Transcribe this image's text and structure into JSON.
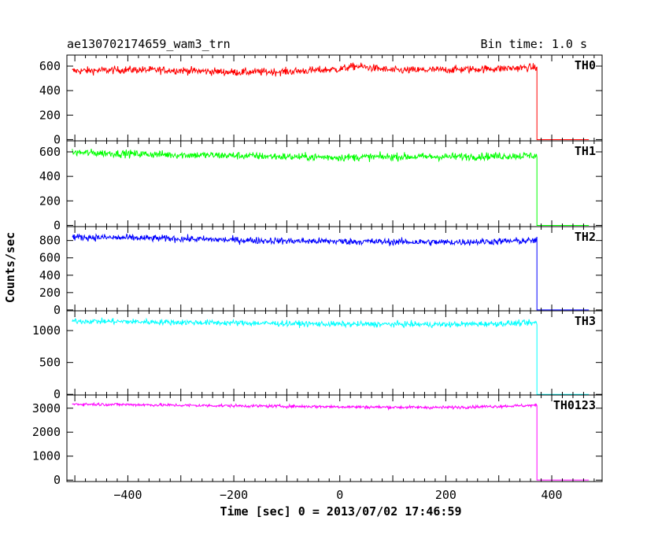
{
  "chart_data": {
    "type": "line",
    "title": "ae130702174659_wam3_trn",
    "bin_time_label": "Bin time: 1.0 s",
    "xlabel": "Time [sec] 0 = 2013/07/02 17:46:59",
    "ylabel": "Counts/sec",
    "xlim": [
      -515,
      495
    ],
    "x_ticks": [
      -400,
      -200,
      0,
      200,
      400
    ],
    "x_tick_labels": [
      "−400",
      "−200",
      "0",
      "200",
      "400"
    ],
    "signal_x_range": [
      -505,
      372
    ],
    "dropoff_x": 372,
    "end_x": 470,
    "panels": [
      {
        "label": "TH0",
        "color": "#ff0000",
        "ylim": [
          -10,
          690
        ],
        "y_ticks": [
          0,
          200,
          400,
          600
        ],
        "y_tick_labels": [
          "0",
          "200",
          "400",
          "600"
        ],
        "trend_x": [
          -505,
          -400,
          -300,
          -200,
          -100,
          0,
          30,
          100,
          200,
          300,
          372
        ],
        "trend_y": [
          560,
          570,
          565,
          550,
          555,
          575,
          600,
          565,
          570,
          580,
          590
        ],
        "noise": 22,
        "final_value": 0
      },
      {
        "label": "TH1",
        "color": "#00ff00",
        "ylim": [
          -10,
          690
        ],
        "y_ticks": [
          0,
          200,
          400,
          600
        ],
        "y_tick_labels": [
          "0",
          "200",
          "400",
          "600"
        ],
        "trend_x": [
          -505,
          -400,
          -300,
          -200,
          -100,
          0,
          100,
          200,
          300,
          372
        ],
        "trend_y": [
          595,
          585,
          575,
          570,
          560,
          555,
          560,
          560,
          565,
          570
        ],
        "noise": 22,
        "final_value": 0
      },
      {
        "label": "TH2",
        "color": "#0000ff",
        "ylim": [
          -10,
          960
        ],
        "y_ticks": [
          0,
          200,
          400,
          600,
          800
        ],
        "y_tick_labels": [
          "0",
          "200",
          "400",
          "600",
          "800"
        ],
        "trend_x": [
          -505,
          -400,
          -300,
          -200,
          -100,
          0,
          100,
          200,
          300,
          372
        ],
        "trend_y": [
          840,
          830,
          820,
          805,
          795,
          790,
          785,
          780,
          790,
          800
        ],
        "noise": 28,
        "final_value": 0
      },
      {
        "label": "TH3",
        "color": "#00ffff",
        "ylim": [
          -10,
          1310
        ],
        "y_ticks": [
          0,
          500,
          1000
        ],
        "y_tick_labels": [
          "0",
          "500",
          "1000"
        ],
        "trend_x": [
          -505,
          -400,
          -300,
          -200,
          -100,
          0,
          100,
          200,
          300,
          372
        ],
        "trend_y": [
          1150,
          1140,
          1130,
          1120,
          1110,
          1100,
          1100,
          1095,
          1110,
          1120
        ],
        "noise": 32,
        "final_value": 0
      },
      {
        "label": "TH0123",
        "color": "#ff00ff",
        "ylim": [
          -60,
          3550
        ],
        "y_ticks": [
          0,
          1000,
          2000,
          3000
        ],
        "y_tick_labels": [
          "0",
          "1000",
          "2000",
          "3000"
        ],
        "trend_x": [
          -505,
          -400,
          -300,
          -200,
          -100,
          0,
          100,
          200,
          300,
          372
        ],
        "trend_y": [
          3170,
          3150,
          3120,
          3100,
          3080,
          3060,
          3040,
          3030,
          3080,
          3120
        ],
        "noise": 45,
        "final_value": 0
      }
    ],
    "grid": false,
    "legend": "none"
  }
}
